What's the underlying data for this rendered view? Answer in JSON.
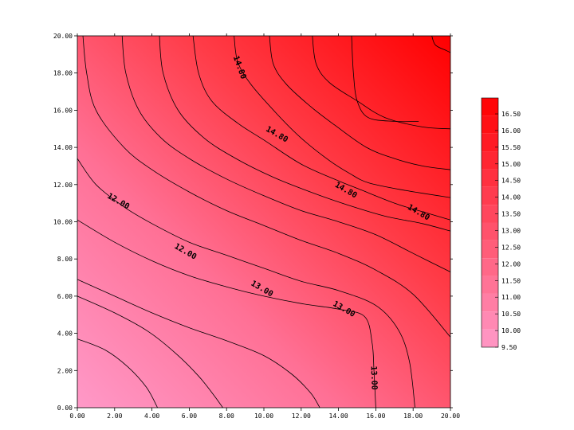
{
  "chart_data": {
    "type": "contour",
    "title": "",
    "xlabel": "",
    "ylabel": "",
    "xlim": [
      0,
      20
    ],
    "ylim": [
      0,
      20
    ],
    "x_ticks": [
      "0.00",
      "2.00",
      "4.00",
      "6.00",
      "8.00",
      "10.00",
      "12.00",
      "14.00",
      "16.00",
      "18.00",
      "20.00"
    ],
    "y_ticks": [
      "0.00",
      "2.00",
      "4.00",
      "6.00",
      "8.00",
      "10.00",
      "12.00",
      "14.00",
      "16.00",
      "18.00",
      "20.00"
    ],
    "z_range": [
      9.5,
      16.5
    ],
    "color_low": "#ff99c8",
    "color_high": "#ff0000",
    "legend_position": "right",
    "legend_levels": [
      "16.50",
      "16.00",
      "15.50",
      "15.00",
      "14.50",
      "14.00",
      "13.50",
      "13.00",
      "12.50",
      "12.00",
      "11.50",
      "11.00",
      "10.50",
      "10.00",
      "9.50"
    ],
    "contour_labels": [
      {
        "text": "14.80",
        "x": 8.7,
        "y": 18.3
      },
      {
        "text": "14.80",
        "x": 10.7,
        "y": 14.7
      },
      {
        "text": "14.80",
        "x": 14.4,
        "y": 11.7
      },
      {
        "text": "14.80",
        "x": 18.3,
        "y": 10.5
      },
      {
        "text": "12.00",
        "x": 2.2,
        "y": 11.1
      },
      {
        "text": "12.00",
        "x": 5.8,
        "y": 8.4
      },
      {
        "text": "13.00",
        "x": 9.9,
        "y": 6.4
      },
      {
        "text": "13.00",
        "x": 14.3,
        "y": 5.3
      },
      {
        "text": "13.00",
        "x": 15.9,
        "y": 1.6
      }
    ],
    "contours": [
      [
        [
          0,
          3.7
        ],
        [
          1.5,
          3.1
        ],
        [
          2.7,
          2.2
        ],
        [
          3.7,
          1.1
        ],
        [
          4.3,
          0
        ]
      ],
      [
        [
          0,
          6.0
        ],
        [
          2.0,
          5.1
        ],
        [
          3.8,
          4.1
        ],
        [
          5.3,
          2.9
        ],
        [
          6.5,
          1.7
        ],
        [
          7.3,
          0.7
        ],
        [
          7.8,
          0
        ]
      ],
      [
        [
          0,
          6.9
        ],
        [
          2.0,
          6.0
        ],
        [
          4.0,
          5.1
        ],
        [
          6.0,
          4.3
        ],
        [
          8.0,
          3.6
        ],
        [
          10.0,
          2.8
        ],
        [
          11.5,
          1.8
        ],
        [
          12.5,
          0.8
        ],
        [
          13.0,
          0
        ]
      ],
      [
        [
          0,
          10.1
        ],
        [
          2.0,
          8.9
        ],
        [
          4.0,
          7.9
        ],
        [
          6.0,
          7.1
        ],
        [
          8.0,
          6.5
        ],
        [
          10.0,
          6.0
        ],
        [
          12.0,
          5.6
        ],
        [
          14.0,
          5.3
        ],
        [
          15.4,
          4.9
        ],
        [
          15.8,
          3.5
        ],
        [
          15.9,
          2.0
        ],
        [
          16.0,
          0
        ]
      ],
      [
        [
          0,
          13.4
        ],
        [
          1.0,
          12.0
        ],
        [
          2.5,
          10.8
        ],
        [
          4.0,
          9.9
        ],
        [
          6.0,
          8.9
        ],
        [
          8.0,
          8.2
        ],
        [
          10.0,
          7.5
        ],
        [
          12.0,
          6.8
        ],
        [
          14.0,
          6.3
        ],
        [
          16.0,
          5.5
        ],
        [
          17.2,
          4.2
        ],
        [
          17.8,
          2.5
        ],
        [
          18.1,
          0
        ]
      ],
      [
        [
          0.3,
          20
        ],
        [
          0.5,
          18.0
        ],
        [
          1.0,
          16.0
        ],
        [
          2.5,
          14.0
        ],
        [
          4.0,
          12.8
        ],
        [
          6.0,
          11.6
        ],
        [
          8.0,
          10.6
        ],
        [
          10.0,
          9.8
        ],
        [
          12.0,
          9.0
        ],
        [
          14.0,
          8.3
        ],
        [
          16.0,
          7.4
        ],
        [
          18.0,
          6.1
        ],
        [
          20.0,
          3.8
        ]
      ],
      [
        [
          2.4,
          20
        ],
        [
          2.6,
          18.0
        ],
        [
          3.3,
          16.0
        ],
        [
          4.5,
          14.5
        ],
        [
          6.0,
          13.4
        ],
        [
          8.0,
          12.3
        ],
        [
          10.0,
          11.4
        ],
        [
          12.0,
          10.6
        ],
        [
          14.0,
          10.0
        ],
        [
          16.0,
          9.3
        ],
        [
          18.0,
          8.3
        ],
        [
          20.0,
          7.3
        ]
      ],
      [
        [
          4.4,
          20
        ],
        [
          4.6,
          18.0
        ],
        [
          5.4,
          16.0
        ],
        [
          6.8,
          14.5
        ],
        [
          8.5,
          13.4
        ],
        [
          10.5,
          12.4
        ],
        [
          12.5,
          11.6
        ],
        [
          14.5,
          10.9
        ],
        [
          16.5,
          10.3
        ],
        [
          18.5,
          9.9
        ],
        [
          20.0,
          9.5
        ]
      ],
      [
        [
          6.2,
          20
        ],
        [
          6.5,
          18.0
        ],
        [
          7.2,
          16.5
        ],
        [
          8.6,
          15.3
        ],
        [
          10.0,
          14.4
        ],
        [
          12.0,
          13.1
        ],
        [
          14.0,
          12.2
        ],
        [
          15.0,
          11.8
        ],
        [
          17.0,
          11.0
        ],
        [
          18.3,
          10.6
        ],
        [
          20.0,
          10.1
        ]
      ],
      [
        [
          8.4,
          20
        ],
        [
          8.6,
          18.6
        ],
        [
          9.3,
          17.4
        ],
        [
          10.7,
          15.8
        ],
        [
          12.0,
          14.5
        ],
        [
          13.5,
          13.3
        ],
        [
          14.6,
          12.6
        ],
        [
          15.6,
          12.1
        ],
        [
          17.5,
          11.7
        ],
        [
          20.0,
          11.3
        ]
      ],
      [
        [
          10.3,
          20
        ],
        [
          10.5,
          18.5
        ],
        [
          11.2,
          17.4
        ],
        [
          12.5,
          16.2
        ],
        [
          13.8,
          15.2
        ],
        [
          15.5,
          14.0
        ],
        [
          17.0,
          13.4
        ],
        [
          18.5,
          13.0
        ],
        [
          20.0,
          12.8
        ]
      ],
      [
        [
          12.6,
          20
        ],
        [
          12.8,
          18.5
        ],
        [
          13.5,
          17.5
        ],
        [
          15.0,
          16.5
        ],
        [
          16.5,
          15.6
        ],
        [
          18.5,
          15.1
        ],
        [
          20.0,
          15.0
        ]
      ],
      [
        [
          14.7,
          20
        ],
        [
          14.8,
          18.0
        ],
        [
          15.0,
          16.5
        ],
        [
          15.6,
          15.6
        ],
        [
          17.0,
          15.4
        ],
        [
          18.3,
          15.4
        ]
      ],
      [
        [
          19.0,
          20
        ],
        [
          19.2,
          19.5
        ],
        [
          19.8,
          19.2
        ],
        [
          20.0,
          19.1
        ]
      ]
    ]
  }
}
